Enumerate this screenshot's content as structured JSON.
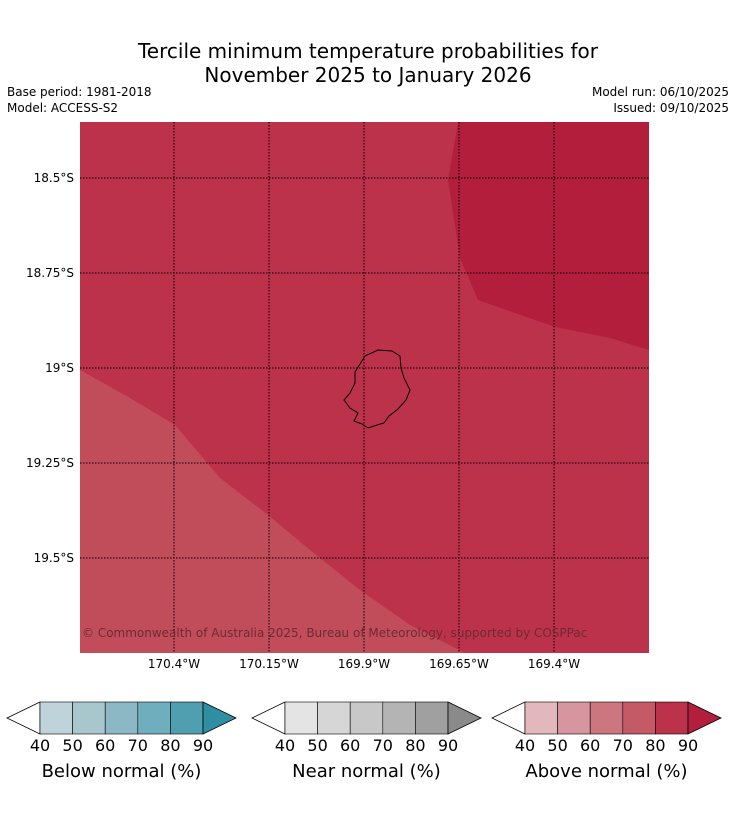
{
  "title": {
    "line1": "Tercile minimum temperature probabilities for",
    "line2": "November 2025 to January 2026"
  },
  "meta_left": {
    "base_period": "Base period: 1981-2018",
    "model": "Model: ACCESS-S2"
  },
  "meta_right": {
    "model_run": "Model run: 06/10/2025",
    "issued": "Issued: 09/10/2025"
  },
  "map": {
    "lat_labels": [
      "18.5°S",
      "18.75°S",
      "19°S",
      "19.25°S",
      "19.5°S"
    ],
    "lon_labels": [
      "170.4°W",
      "170.15°W",
      "169.9°W",
      "169.65°W",
      "169.4°W"
    ],
    "copyright": "© Commonwealth of Australia 2025, Bureau of Meteorology, supported by COSPPac",
    "colors": {
      "above_80": "#bd324b",
      "above_90": "#b21e3c",
      "above_70": "#c24d5a"
    }
  },
  "colorbars": {
    "ticks": [
      "40",
      "50",
      "60",
      "70",
      "80",
      "90"
    ],
    "below": {
      "title": "Below normal (%)",
      "colors": [
        "#bed3da",
        "#a8c7cd",
        "#8bb8c4",
        "#6faebd",
        "#4f9fb0",
        "#2e8fa3"
      ]
    },
    "near": {
      "title": "Near normal (%)",
      "colors": [
        "#e4e4e4",
        "#d6d6d6",
        "#c8c8c8",
        "#b4b4b4",
        "#a0a0a0",
        "#8a8a8a"
      ]
    },
    "above": {
      "title": "Above normal (%)",
      "colors": [
        "#e2b8be",
        "#d6969f",
        "#cc7680",
        "#c45a66",
        "#bd324b",
        "#b21e3c"
      ]
    }
  }
}
